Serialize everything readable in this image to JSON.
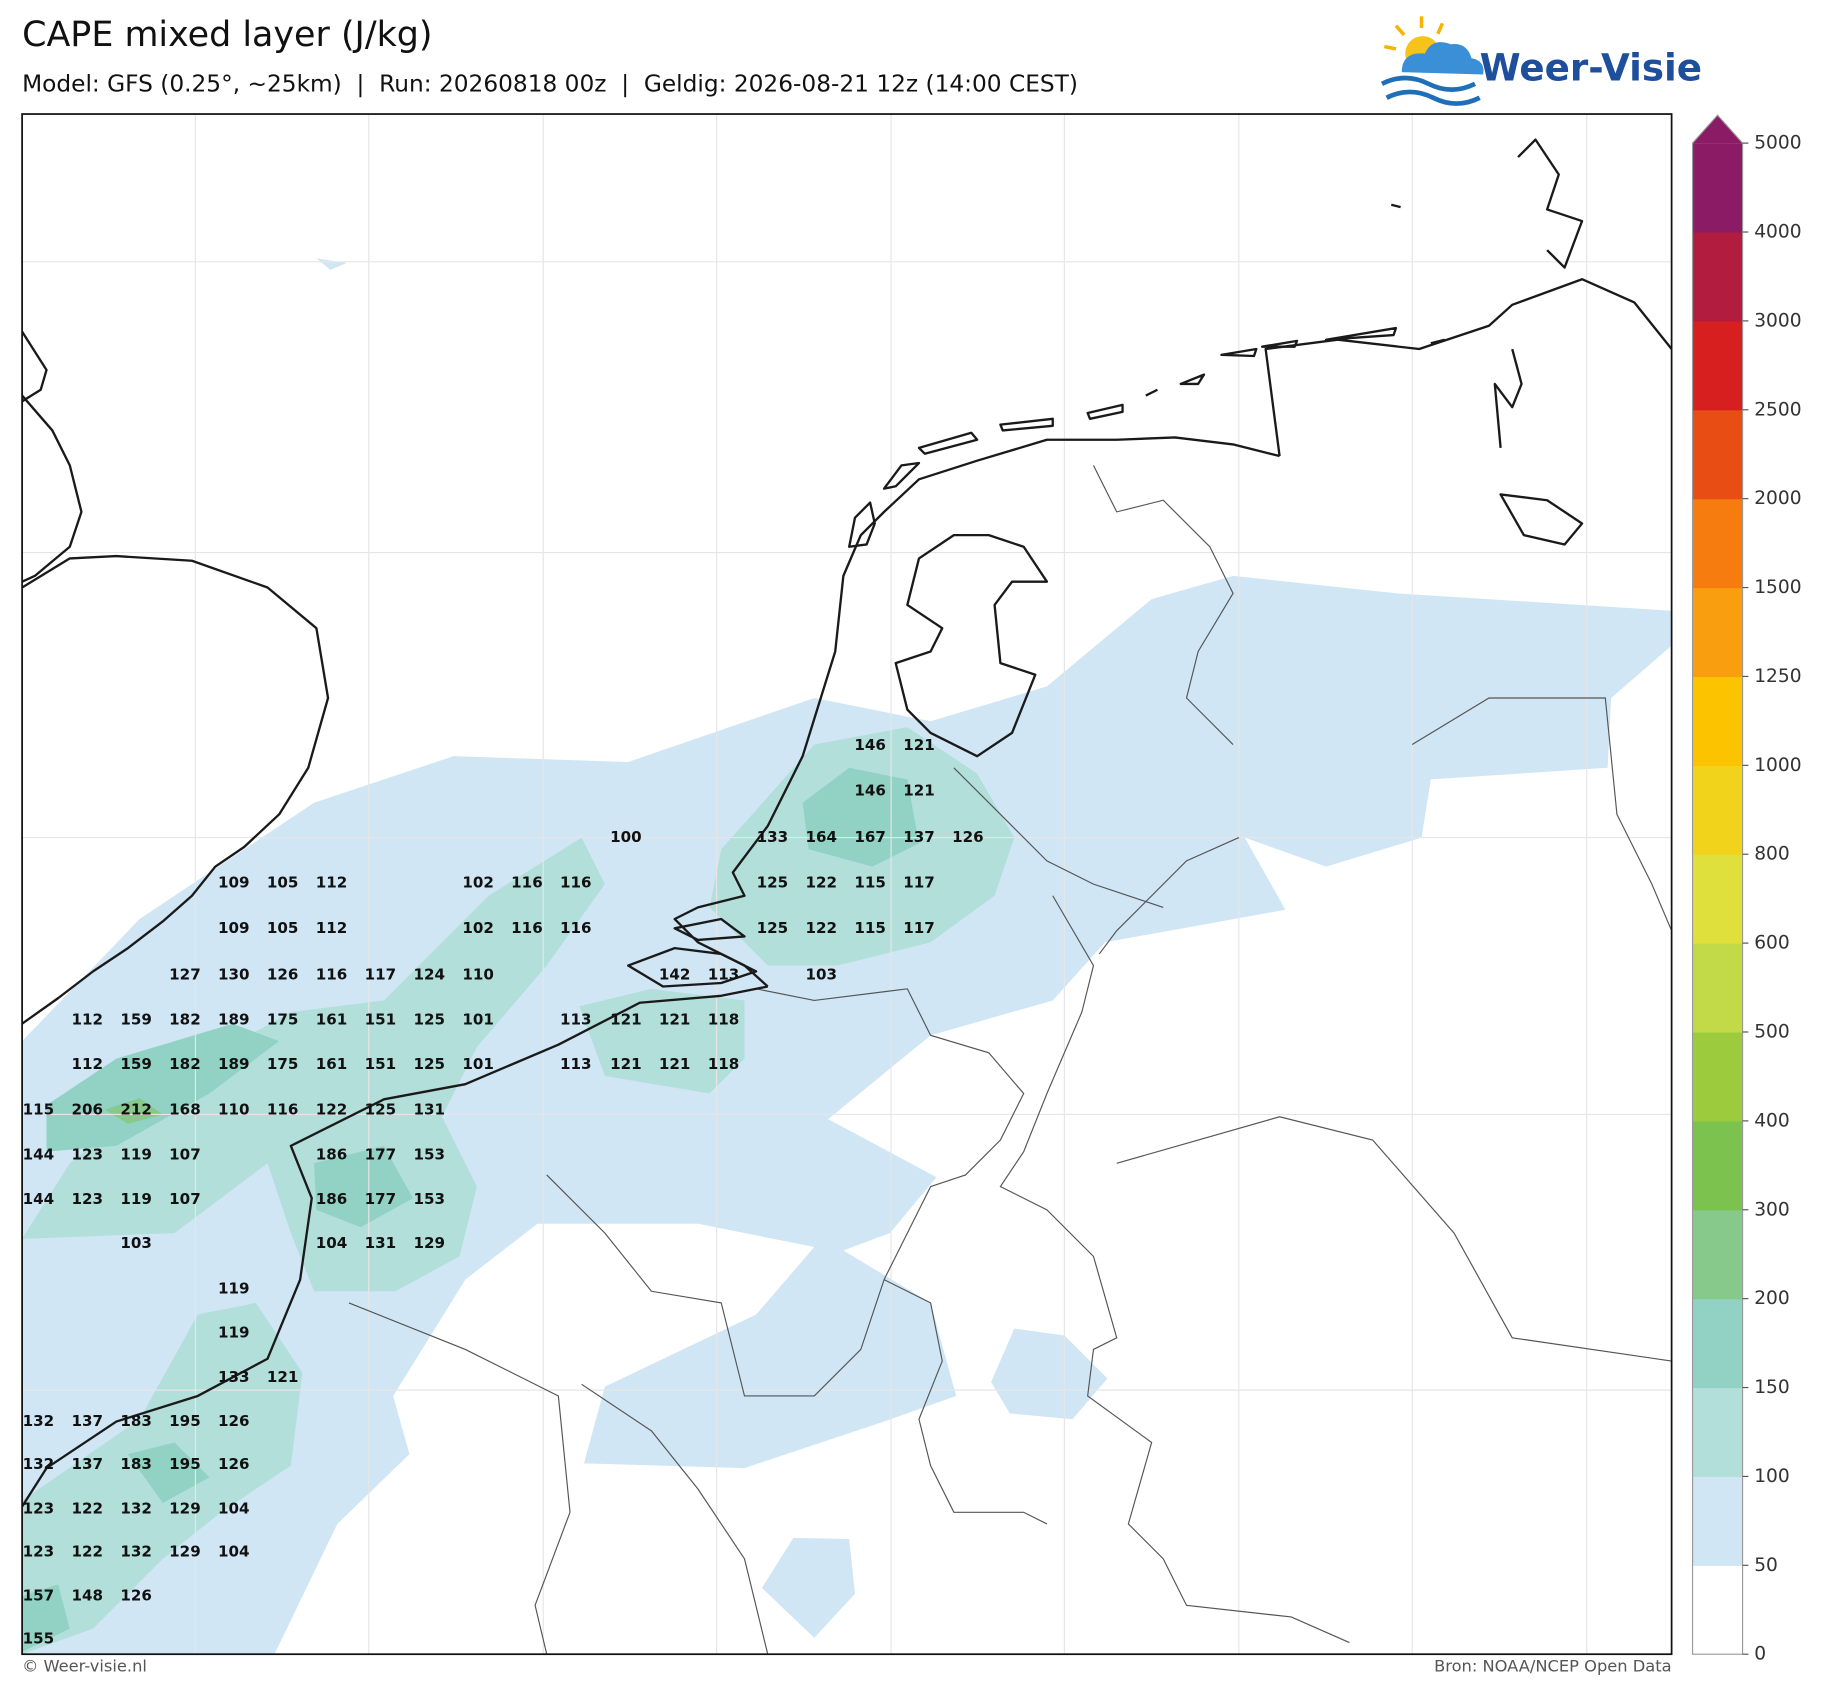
{
  "header": {
    "title": "CAPE mixed layer (J/kg)",
    "subtitle": "Model: GFS (0.25°, ~25km)  |  Run: 20260818 00z  |  Geldig: 2026-08-21 12z (14:00 CEST)"
  },
  "logo": {
    "text": "Weer-Visie"
  },
  "map_labels": [
    [
      146,
      121
    ],
    [
      146,
      121
    ],
    [
      100,
      133,
      164,
      167,
      137,
      126
    ],
    [
      109,
      105,
      112,
      102,
      116,
      116,
      125,
      122,
      115,
      117
    ],
    [
      109,
      105,
      112,
      102,
      116,
      116,
      125,
      122,
      115,
      117
    ],
    [
      127,
      130,
      126,
      116,
      117,
      124,
      110,
      142,
      113,
      103
    ],
    [
      112,
      159,
      182,
      189,
      175,
      161,
      151,
      125,
      101,
      113,
      121,
      121,
      118
    ],
    [
      112,
      159,
      182,
      189,
      175,
      161,
      151,
      125,
      101,
      113,
      121,
      121,
      118
    ],
    [
      115,
      206,
      212,
      168,
      110,
      116,
      122,
      125,
      131
    ],
    [
      144,
      123,
      119,
      107,
      186,
      177,
      153
    ],
    [
      144,
      123,
      119,
      107,
      186,
      177,
      153
    ],
    [
      103,
      104,
      131,
      129
    ],
    [
      119
    ],
    [
      119
    ],
    [
      133,
      121
    ],
    [
      132,
      137,
      183,
      195,
      126
    ],
    [
      132,
      137,
      183,
      195,
      126
    ],
    [
      123,
      122,
      132,
      129,
      104
    ],
    [
      123,
      122,
      132,
      129,
      104
    ],
    [
      157,
      148,
      126
    ],
    [
      155
    ]
  ],
  "colorbar": {
    "ticks": [
      0,
      50,
      100,
      150,
      200,
      300,
      400,
      500,
      600,
      800,
      1000,
      1250,
      1500,
      2000,
      2500,
      3000,
      4000,
      5000
    ],
    "colors": [
      "#ffffff",
      "#d0e6f5",
      "#b3dfdb",
      "#92d2c4",
      "#86c98a",
      "#7cc24e",
      "#9ccc3d",
      "#c2da48",
      "#dfe03c",
      "#f2d31c",
      "#fbc300",
      "#f99e0f",
      "#f67c0f",
      "#e84e14",
      "#d81f1f",
      "#b11c3f",
      "#8c1b65"
    ],
    "extend_color": "#8c1b65"
  },
  "footer": {
    "left": "© Weer-visie.nl",
    "right": "Bron: NOAA/NCEP Open Data"
  }
}
